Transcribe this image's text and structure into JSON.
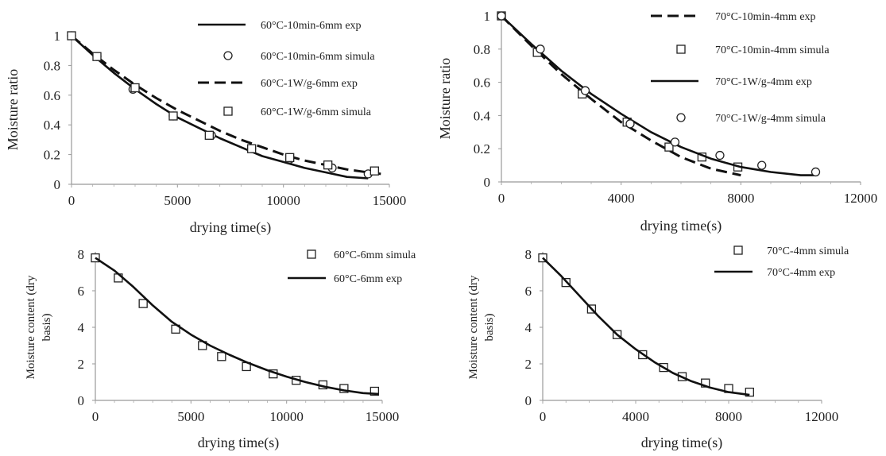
{
  "chart_data": [
    {
      "type": "line",
      "xlabel": "drying time(s)",
      "ylabel": "Moisture ratio",
      "xlim": [
        0,
        15000
      ],
      "ylim": [
        0,
        1
      ],
      "xticks": [
        "0",
        "5000",
        "10000",
        "15000"
      ],
      "yticks": [
        "0",
        "0.2",
        "0.4",
        "0.6",
        "0.8",
        "1"
      ],
      "legend_position": "top-right",
      "series": [
        {
          "name": "60°C-10min-6mm  exp",
          "style": "solid",
          "x": [
            0,
            1000,
            2000,
            3000,
            4000,
            5000,
            6000,
            7000,
            8000,
            9000,
            10000,
            11000,
            12000,
            13000,
            14000
          ],
          "y": [
            1,
            0.87,
            0.75,
            0.64,
            0.54,
            0.45,
            0.38,
            0.31,
            0.25,
            0.19,
            0.15,
            0.11,
            0.08,
            0.05,
            0.04
          ]
        },
        {
          "name": "60°C-10min-6mm  simula",
          "style": "circle",
          "x": [
            0,
            1200,
            2900,
            4800,
            6600,
            8500,
            10300,
            12300,
            14000
          ],
          "y": [
            1,
            0.86,
            0.64,
            0.46,
            0.33,
            0.24,
            0.17,
            0.11,
            0.07
          ]
        },
        {
          "name": "60°C-1W/g-6mm  exp",
          "style": "dashed",
          "x": [
            0,
            1000,
            2000,
            3000,
            4000,
            5000,
            6000,
            7000,
            8000,
            9000,
            10000,
            11000,
            12000,
            13000,
            14000,
            14600
          ],
          "y": [
            1,
            0.88,
            0.77,
            0.67,
            0.58,
            0.5,
            0.43,
            0.36,
            0.3,
            0.25,
            0.2,
            0.16,
            0.13,
            0.1,
            0.08,
            0.07
          ]
        },
        {
          "name": "60°C-1W/g-6mm  simula",
          "style": "square",
          "x": [
            0,
            1200,
            3000,
            4800,
            6500,
            8500,
            10300,
            12100,
            14300
          ],
          "y": [
            1,
            0.86,
            0.65,
            0.46,
            0.33,
            0.24,
            0.18,
            0.13,
            0.09
          ]
        }
      ]
    },
    {
      "type": "line",
      "xlabel": "drying time(s)",
      "ylabel": "Moisture ratio",
      "xlim": [
        0,
        12000
      ],
      "ylim": [
        0,
        1
      ],
      "xticks": [
        "0",
        "4000",
        "8000",
        "12000"
      ],
      "yticks": [
        "0",
        "0.2",
        "0.4",
        "0.6",
        "0.8",
        "1"
      ],
      "legend_position": "top-right",
      "series": [
        {
          "name": "70°C-10min-4mm  exp",
          "style": "dashed",
          "x": [
            0,
            1000,
            2000,
            3000,
            4000,
            5000,
            6000,
            7000,
            8000
          ],
          "y": [
            1,
            0.82,
            0.65,
            0.5,
            0.36,
            0.25,
            0.15,
            0.08,
            0.04
          ]
        },
        {
          "name": "70°C-10min-4mm  simula",
          "style": "square",
          "x": [
            0,
            1200,
            2700,
            4200,
            5600,
            6700,
            7900
          ],
          "y": [
            1,
            0.78,
            0.53,
            0.36,
            0.21,
            0.15,
            0.09
          ]
        },
        {
          "name": "70°C-1W/g-4mm  exp",
          "style": "solid",
          "x": [
            0,
            1000,
            2000,
            3000,
            4000,
            5000,
            6000,
            7000,
            8000,
            9000,
            10000,
            10500
          ],
          "y": [
            1,
            0.83,
            0.67,
            0.53,
            0.41,
            0.3,
            0.21,
            0.14,
            0.09,
            0.06,
            0.04,
            0.04
          ]
        },
        {
          "name": "70°C-1W/g-4mm  simula",
          "style": "circle",
          "x": [
            0,
            1300,
            2800,
            4300,
            5800,
            7300,
            8700,
            10500
          ],
          "y": [
            1,
            0.8,
            0.55,
            0.35,
            0.24,
            0.16,
            0.1,
            0.06
          ]
        }
      ]
    },
    {
      "type": "line",
      "xlabel": "drying time(s)",
      "ylabel": "Moisture content (dry basis)",
      "xlim": [
        0,
        15000
      ],
      "ylim": [
        0,
        8
      ],
      "xticks": [
        "0",
        "5000",
        "10000",
        "15000"
      ],
      "yticks": [
        "0",
        "2",
        "4",
        "6",
        "8"
      ],
      "legend_position": "top-right",
      "series": [
        {
          "name": "60°C-6mm simula",
          "style": "square",
          "x": [
            0,
            1200,
            2500,
            4200,
            5600,
            6600,
            7900,
            9300,
            10500,
            11900,
            13000,
            14600
          ],
          "y": [
            7.8,
            6.7,
            5.3,
            3.9,
            3.0,
            2.4,
            1.85,
            1.45,
            1.1,
            0.85,
            0.65,
            0.5
          ]
        },
        {
          "name": "60°C-6mm exp",
          "style": "solid",
          "x": [
            0,
            1000,
            2000,
            3000,
            4000,
            5000,
            6000,
            7000,
            8000,
            9000,
            10000,
            11000,
            12000,
            13000,
            14000,
            14800
          ],
          "y": [
            7.8,
            7.1,
            6.2,
            5.2,
            4.3,
            3.6,
            3.0,
            2.5,
            2.05,
            1.65,
            1.3,
            1.0,
            0.75,
            0.55,
            0.4,
            0.35
          ]
        }
      ]
    },
    {
      "type": "line",
      "xlabel": "drying time(s)",
      "ylabel": "Moisture content (dry basis)",
      "xlim": [
        0,
        12000
      ],
      "ylim": [
        0,
        8
      ],
      "xticks": [
        "0",
        "4000",
        "8000",
        "12000"
      ],
      "yticks": [
        "0",
        "2",
        "4",
        "6",
        "8"
      ],
      "legend_position": "top-right",
      "series": [
        {
          "name": "70°C-4mm simula",
          "style": "square",
          "x": [
            0,
            1000,
            2100,
            3200,
            4300,
            5200,
            6000,
            7000,
            8000,
            8900
          ],
          "y": [
            7.8,
            6.45,
            5.0,
            3.6,
            2.5,
            1.8,
            1.3,
            0.95,
            0.65,
            0.45
          ]
        },
        {
          "name": "70°C-4mm exp",
          "style": "solid",
          "x": [
            0,
            800,
            1600,
            2400,
            3200,
            4000,
            4800,
            5600,
            6400,
            7200,
            8000,
            8900
          ],
          "y": [
            7.8,
            6.8,
            5.7,
            4.6,
            3.6,
            2.8,
            2.1,
            1.5,
            1.05,
            0.7,
            0.45,
            0.3
          ]
        }
      ]
    }
  ]
}
